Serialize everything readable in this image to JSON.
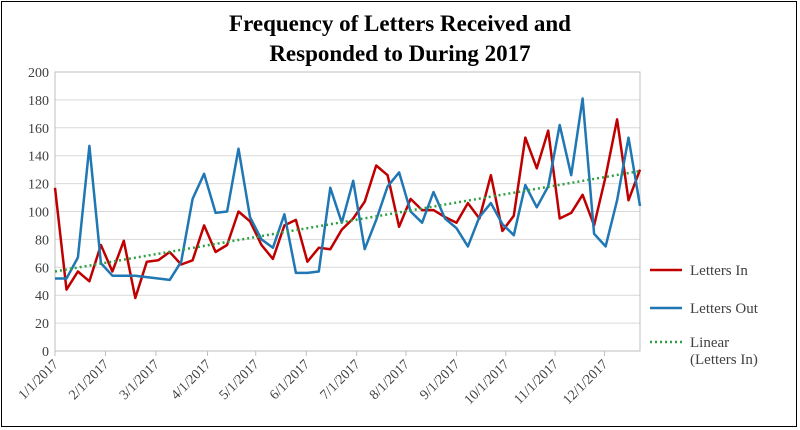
{
  "chart_data": {
    "type": "line",
    "title_line1": "Frequency of Letters Received and",
    "title_line2": "Responded to During 2017",
    "xlabel": "",
    "ylabel": "",
    "ylim": [
      0,
      200
    ],
    "ytick_step": 20,
    "grid": true,
    "legend_position": "right",
    "x_tick_labels": [
      "1/1/2017",
      "2/1/2017",
      "3/1/2017",
      "4/1/2017",
      "5/1/2017",
      "6/1/2017",
      "7/1/2017",
      "8/1/2017",
      "9/1/2017",
      "10/1/2017",
      "11/1/2017",
      "12/1/2017"
    ],
    "series": [
      {
        "name": "Letters In",
        "color": "#c00000",
        "values": [
          117,
          44,
          57,
          50,
          76,
          57,
          79,
          38,
          64,
          65,
          71,
          62,
          65,
          90,
          71,
          76,
          100,
          93,
          76,
          66,
          90,
          94,
          64,
          74,
          73,
          87,
          95,
          107,
          133,
          126,
          89,
          109,
          101,
          101,
          96,
          92,
          106,
          95,
          126,
          86,
          97,
          153,
          131,
          158,
          95,
          99,
          112,
          90,
          125,
          166,
          108,
          130
        ]
      },
      {
        "name": "Letters Out",
        "color": "#1f77b4",
        "values": [
          52,
          52,
          67,
          147,
          63,
          54,
          54,
          54,
          53,
          52,
          51,
          64,
          109,
          127,
          99,
          100,
          145,
          96,
          80,
          74,
          98,
          56,
          56,
          57,
          117,
          92,
          122,
          73,
          94,
          118,
          128,
          100,
          92,
          114,
          95,
          88,
          75,
          96,
          106,
          91,
          83,
          119,
          103,
          118,
          162,
          126,
          181,
          84,
          75,
          108,
          153,
          104
        ]
      },
      {
        "name": "Linear (Letters In)",
        "color": "#2ea043",
        "dashed": true,
        "trend_start": 57,
        "trend_end": 129
      }
    ]
  }
}
